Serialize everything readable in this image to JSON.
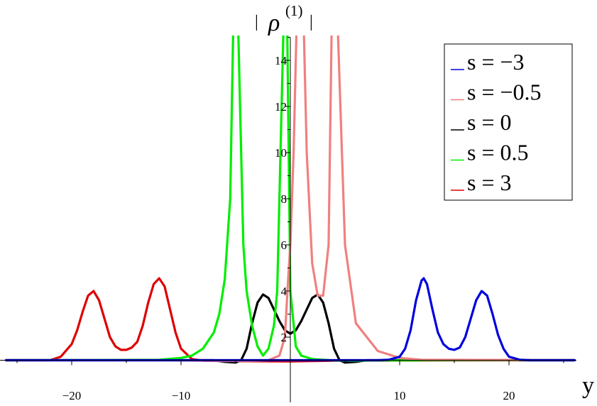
{
  "chart_data": {
    "type": "line",
    "xlabel": "y",
    "ylabel": "| ρ(1) |",
    "ylabel_parts": {
      "bar_left": "|",
      "rho": "ρ",
      "superscript": "(1)",
      "bar_right": "|"
    },
    "xlim": [
      -26,
      27
    ],
    "ylim": [
      0,
      15
    ],
    "x_axis_at_y": 1.0,
    "x_ticks": [
      {
        "value": -20,
        "label": "−20"
      },
      {
        "value": -10,
        "label": "−10"
      },
      {
        "value": 10,
        "label": "10"
      },
      {
        "value": 20,
        "label": "20"
      }
    ],
    "y_ticks": [
      {
        "value": 2,
        "label": "2"
      },
      {
        "value": 4,
        "label": "4"
      },
      {
        "value": 6,
        "label": "6"
      },
      {
        "value": 8,
        "label": "8"
      },
      {
        "value": 10,
        "label": "10"
      },
      {
        "value": 12,
        "label": "12"
      },
      {
        "value": 14,
        "label": "14"
      }
    ],
    "legend_position": "top-right",
    "series": [
      {
        "name": "s = −3",
        "color": "#0000dd",
        "x": [
          -26,
          8,
          9,
          10,
          10.5,
          11,
          11.5,
          12,
          12.2,
          12.5,
          13,
          13.5,
          14,
          14.5,
          15,
          15.5,
          16,
          16.5,
          17,
          17.5,
          18,
          18.5,
          19,
          19.5,
          20,
          21,
          22,
          26
        ],
        "y": [
          1.0,
          1.0,
          1.02,
          1.15,
          1.5,
          2.3,
          3.6,
          4.45,
          4.55,
          4.3,
          3.2,
          2.2,
          1.7,
          1.5,
          1.45,
          1.55,
          2.0,
          2.8,
          3.6,
          4.0,
          3.8,
          3.0,
          2.1,
          1.5,
          1.15,
          1.02,
          1.0,
          1.0
        ]
      },
      {
        "name": "s = −0.5",
        "color": "#f08080",
        "x": [
          -26,
          -12,
          -10,
          -8,
          -6,
          -4,
          -3,
          -2,
          -1,
          -0.5,
          -0.2,
          0,
          0.3,
          0.6,
          1.2,
          1.5,
          2,
          2.5,
          3,
          3.5,
          3.8,
          4.3,
          5,
          6,
          8,
          10,
          12,
          26
        ],
        "y": [
          1.0,
          1.0,
          0.99,
          0.98,
          0.97,
          0.97,
          0.98,
          1.0,
          1.2,
          2.0,
          4.5,
          6,
          10,
          16,
          16,
          10,
          5.2,
          3.8,
          3.8,
          6,
          16,
          16,
          6,
          2.6,
          1.4,
          1.1,
          1.02,
          1.0
        ]
      },
      {
        "name": "s = 0",
        "color": "#000000",
        "x": [
          -26,
          -7,
          -6,
          -5,
          -4.5,
          -4,
          -3.5,
          -3,
          -2.5,
          -2,
          -1.5,
          -1,
          -0.5,
          0,
          0.5,
          1,
          1.5,
          2,
          2.5,
          3,
          3.5,
          4,
          4.5,
          5,
          6,
          7,
          26
        ],
        "y": [
          1.0,
          1.0,
          0.93,
          0.9,
          1.0,
          1.5,
          2.6,
          3.5,
          3.85,
          3.7,
          3.2,
          2.7,
          2.3,
          2.15,
          2.3,
          2.7,
          3.2,
          3.7,
          3.85,
          3.5,
          2.6,
          1.5,
          1.0,
          0.9,
          0.93,
          1.0,
          1.0
        ]
      },
      {
        "name": "s = 0.5",
        "color": "#00ee00",
        "x": [
          -26,
          -12,
          -10,
          -9,
          -8,
          -7,
          -6.5,
          -6,
          -5.5,
          -5.2,
          -4.8,
          -4.3,
          -4,
          -3.5,
          -3,
          -2.5,
          -2,
          -1.5,
          -1.2,
          -0.6,
          -0.3,
          0,
          0.5,
          1,
          2,
          4,
          6,
          8,
          12,
          26
        ],
        "y": [
          1.0,
          1.02,
          1.1,
          1.2,
          1.5,
          2.2,
          3.0,
          4.5,
          8,
          16,
          16,
          6,
          4.0,
          2.5,
          1.6,
          1.2,
          1.5,
          2.5,
          4.0,
          16,
          16,
          4,
          1.6,
          1.2,
          1.05,
          0.99,
          0.98,
          0.99,
          1.0,
          1.0
        ]
      },
      {
        "name": "s = 3",
        "color": "#dd0000",
        "x": [
          -26,
          -22,
          -21,
          -20,
          -19.5,
          -19,
          -18.5,
          -18,
          -17.5,
          -17,
          -16.5,
          -16,
          -15.5,
          -15,
          -14.5,
          -14,
          -13.5,
          -13,
          -12.5,
          -12,
          -11.5,
          -11,
          -10.5,
          -10,
          -9,
          -8,
          -6,
          0,
          4,
          26
        ],
        "y": [
          1.0,
          1.0,
          1.15,
          1.7,
          2.3,
          3.1,
          3.8,
          4.0,
          3.6,
          2.8,
          2.0,
          1.6,
          1.45,
          1.45,
          1.55,
          1.8,
          2.5,
          3.5,
          4.3,
          4.55,
          4.2,
          3.2,
          2.2,
          1.5,
          1.05,
          0.98,
          0.96,
          0.95,
          0.98,
          1.0
        ]
      }
    ]
  }
}
